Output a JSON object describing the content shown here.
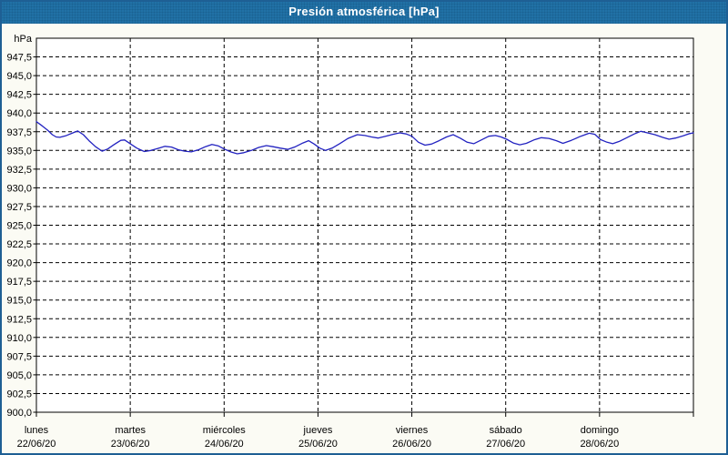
{
  "window": {
    "title": "Presión atmosférica [hPa]"
  },
  "colors": {
    "titlebar_bg": "#2171a6",
    "title_text": "#ffffff",
    "window_bg": "#fbfbf4",
    "window_border": "#1e5f94",
    "plot_bg": "#ffffff",
    "grid": "#000000",
    "line": "#2222c0",
    "label": "#000000"
  },
  "chart_data": {
    "type": "line",
    "title": "Presión atmosférica [hPa]",
    "unit_label": "hPa",
    "ylabel": "hPa",
    "xlabel": "",
    "ylim": [
      900,
      950
    ],
    "ytick_min": 900,
    "ytick_max": 947.5,
    "ytick_step": 2.5,
    "decimal_separator": ",",
    "grid": "dashed",
    "legend": "none",
    "x_categories": [
      {
        "day": "lunes",
        "date": "22/06/20"
      },
      {
        "day": "martes",
        "date": "23/06/20"
      },
      {
        "day": "miércoles",
        "date": "24/06/20"
      },
      {
        "day": "jueves",
        "date": "25/06/20"
      },
      {
        "day": "viernes",
        "date": "26/06/20"
      },
      {
        "day": "sábado",
        "date": "27/06/20"
      },
      {
        "day": "domingo",
        "date": "28/06/20"
      }
    ],
    "series": [
      {
        "name": "Presión atmosférica",
        "color": "#2222c0",
        "points": [
          [
            0.0,
            938.85
          ],
          [
            0.06,
            938.3
          ],
          [
            0.12,
            937.7
          ],
          [
            0.17,
            937.1
          ],
          [
            0.21,
            936.8
          ],
          [
            0.25,
            936.75
          ],
          [
            0.31,
            936.95
          ],
          [
            0.38,
            937.3
          ],
          [
            0.44,
            937.6
          ],
          [
            0.5,
            937.1
          ],
          [
            0.56,
            936.3
          ],
          [
            0.63,
            935.5
          ],
          [
            0.7,
            934.9
          ],
          [
            0.76,
            935.2
          ],
          [
            0.83,
            935.8
          ],
          [
            0.9,
            936.35
          ],
          [
            0.94,
            936.4
          ],
          [
            1.0,
            935.9
          ],
          [
            1.07,
            935.3
          ],
          [
            1.15,
            934.85
          ],
          [
            1.22,
            935.0
          ],
          [
            1.29,
            935.25
          ],
          [
            1.37,
            935.55
          ],
          [
            1.44,
            935.45
          ],
          [
            1.51,
            935.1
          ],
          [
            1.58,
            934.9
          ],
          [
            1.65,
            934.8
          ],
          [
            1.73,
            935.1
          ],
          [
            1.8,
            935.5
          ],
          [
            1.87,
            935.8
          ],
          [
            1.94,
            935.6
          ],
          [
            2.0,
            935.2
          ],
          [
            2.07,
            934.8
          ],
          [
            2.14,
            934.55
          ],
          [
            2.21,
            934.7
          ],
          [
            2.29,
            935.0
          ],
          [
            2.37,
            935.4
          ],
          [
            2.45,
            935.65
          ],
          [
            2.52,
            935.5
          ],
          [
            2.6,
            935.3
          ],
          [
            2.68,
            935.15
          ],
          [
            2.76,
            935.5
          ],
          [
            2.84,
            936.0
          ],
          [
            2.9,
            936.3
          ],
          [
            2.96,
            935.85
          ],
          [
            3.02,
            935.3
          ],
          [
            3.08,
            935.0
          ],
          [
            3.15,
            935.3
          ],
          [
            3.23,
            935.9
          ],
          [
            3.32,
            936.6
          ],
          [
            3.42,
            937.1
          ],
          [
            3.5,
            937.0
          ],
          [
            3.57,
            936.8
          ],
          [
            3.64,
            936.65
          ],
          [
            3.72,
            936.9
          ],
          [
            3.8,
            937.15
          ],
          [
            3.87,
            937.35
          ],
          [
            3.94,
            937.2
          ],
          [
            4.0,
            936.9
          ],
          [
            4.07,
            936.1
          ],
          [
            4.14,
            935.7
          ],
          [
            4.21,
            935.85
          ],
          [
            4.29,
            936.3
          ],
          [
            4.37,
            936.8
          ],
          [
            4.44,
            937.1
          ],
          [
            4.52,
            936.6
          ],
          [
            4.59,
            936.1
          ],
          [
            4.66,
            935.9
          ],
          [
            4.74,
            936.4
          ],
          [
            4.82,
            936.9
          ],
          [
            4.89,
            937.0
          ],
          [
            4.95,
            936.8
          ],
          [
            5.01,
            936.5
          ],
          [
            5.08,
            936.0
          ],
          [
            5.15,
            935.75
          ],
          [
            5.22,
            935.95
          ],
          [
            5.3,
            936.4
          ],
          [
            5.38,
            936.7
          ],
          [
            5.46,
            936.6
          ],
          [
            5.54,
            936.3
          ],
          [
            5.61,
            935.95
          ],
          [
            5.7,
            936.35
          ],
          [
            5.8,
            936.9
          ],
          [
            5.89,
            937.3
          ],
          [
            5.95,
            937.15
          ],
          [
            6.01,
            936.45
          ],
          [
            6.08,
            936.1
          ],
          [
            6.14,
            935.9
          ],
          [
            6.21,
            936.2
          ],
          [
            6.29,
            936.7
          ],
          [
            6.37,
            937.2
          ],
          [
            6.44,
            937.55
          ],
          [
            6.51,
            937.35
          ],
          [
            6.59,
            937.1
          ],
          [
            6.67,
            936.75
          ],
          [
            6.74,
            936.5
          ],
          [
            6.81,
            936.65
          ],
          [
            6.89,
            936.95
          ],
          [
            6.96,
            937.25
          ],
          [
            7.0,
            937.35
          ]
        ]
      }
    ]
  }
}
